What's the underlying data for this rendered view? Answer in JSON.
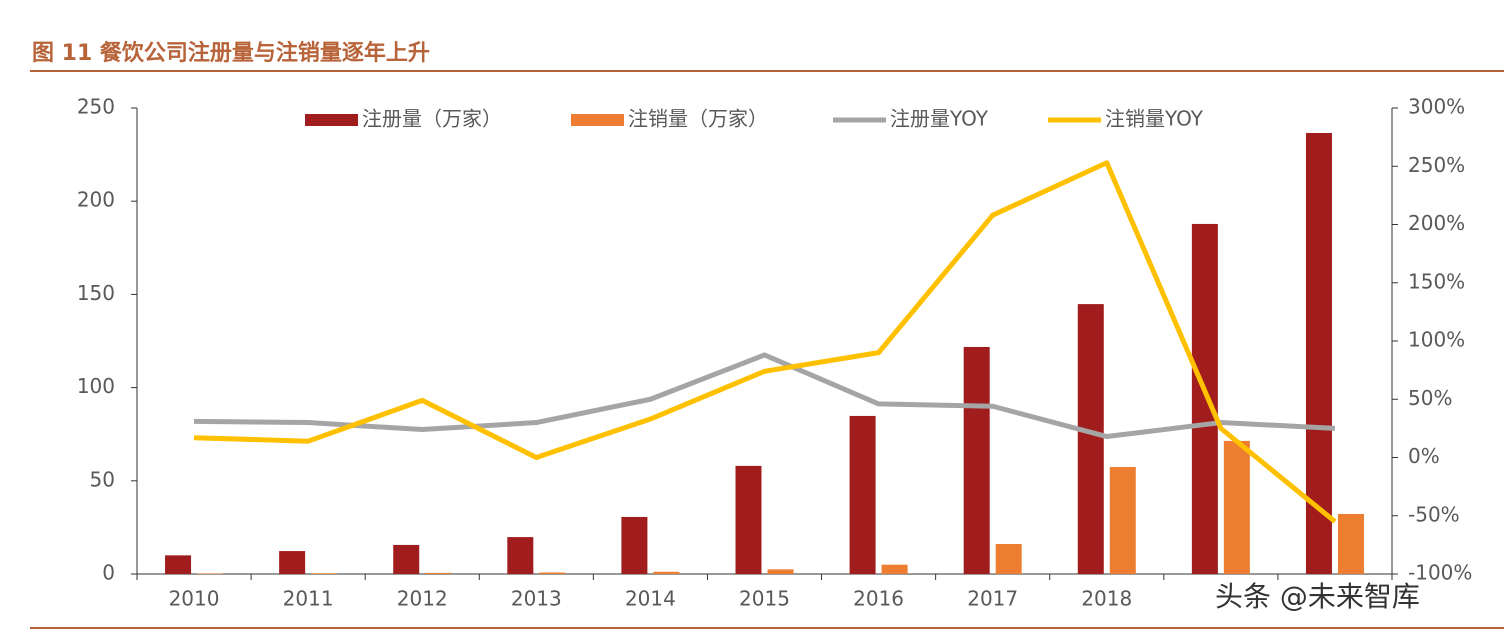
{
  "chart_data": {
    "type": "bar",
    "title": "图 11 餐饮公司注册量与注销量逐年上升",
    "watermark": "头条 @未来智库",
    "categories": [
      "2010",
      "2011",
      "2012",
      "2013",
      "2014",
      "2015",
      "2016",
      "2017",
      "2018",
      null,
      null
    ],
    "series": [
      {
        "name": "注册量（万家）",
        "type": "bar",
        "color": "#a11d1d",
        "values": [
          10,
          12.3,
          15.6,
          19.8,
          30.6,
          58,
          84.8,
          121.8,
          144.8,
          187.8,
          236.6
        ]
      },
      {
        "name": "注销量（万家）",
        "type": "bar",
        "color": "#ed7d31",
        "values": [
          0.3,
          0.4,
          0.6,
          0.8,
          1.2,
          2.5,
          5,
          16.1,
          57.4,
          71.4,
          32.2
        ]
      },
      {
        "name": "注册量YOY",
        "type": "line",
        "axis": "y2",
        "color": "#a5a5a5",
        "values": [
          31,
          30,
          24,
          30,
          50,
          88,
          46,
          44,
          18,
          30,
          25
        ]
      },
      {
        "name": "注销量YOY",
        "type": "line",
        "axis": "y2",
        "color": "#ffc000",
        "values": [
          17,
          14,
          49,
          0,
          33,
          74,
          90,
          208,
          253,
          25,
          -55
        ]
      }
    ],
    "ylim": [
      0,
      250
    ],
    "yticks": [
      0,
      50,
      100,
      150,
      200,
      250
    ],
    "y2lim": [
      -100,
      300
    ],
    "y2ticks": [
      {
        "value": -100,
        "label": "-100%"
      },
      {
        "value": -50,
        "label": "-50%"
      },
      {
        "value": 0,
        "label": "0%"
      },
      {
        "value": 50,
        "label": "50%"
      },
      {
        "value": 100,
        "label": "100%"
      },
      {
        "value": 150,
        "label": "150%"
      },
      {
        "value": 200,
        "label": "200%"
      },
      {
        "value": 250,
        "label": "250%"
      },
      {
        "value": 300,
        "label": "300%"
      }
    ],
    "legend": "top"
  }
}
